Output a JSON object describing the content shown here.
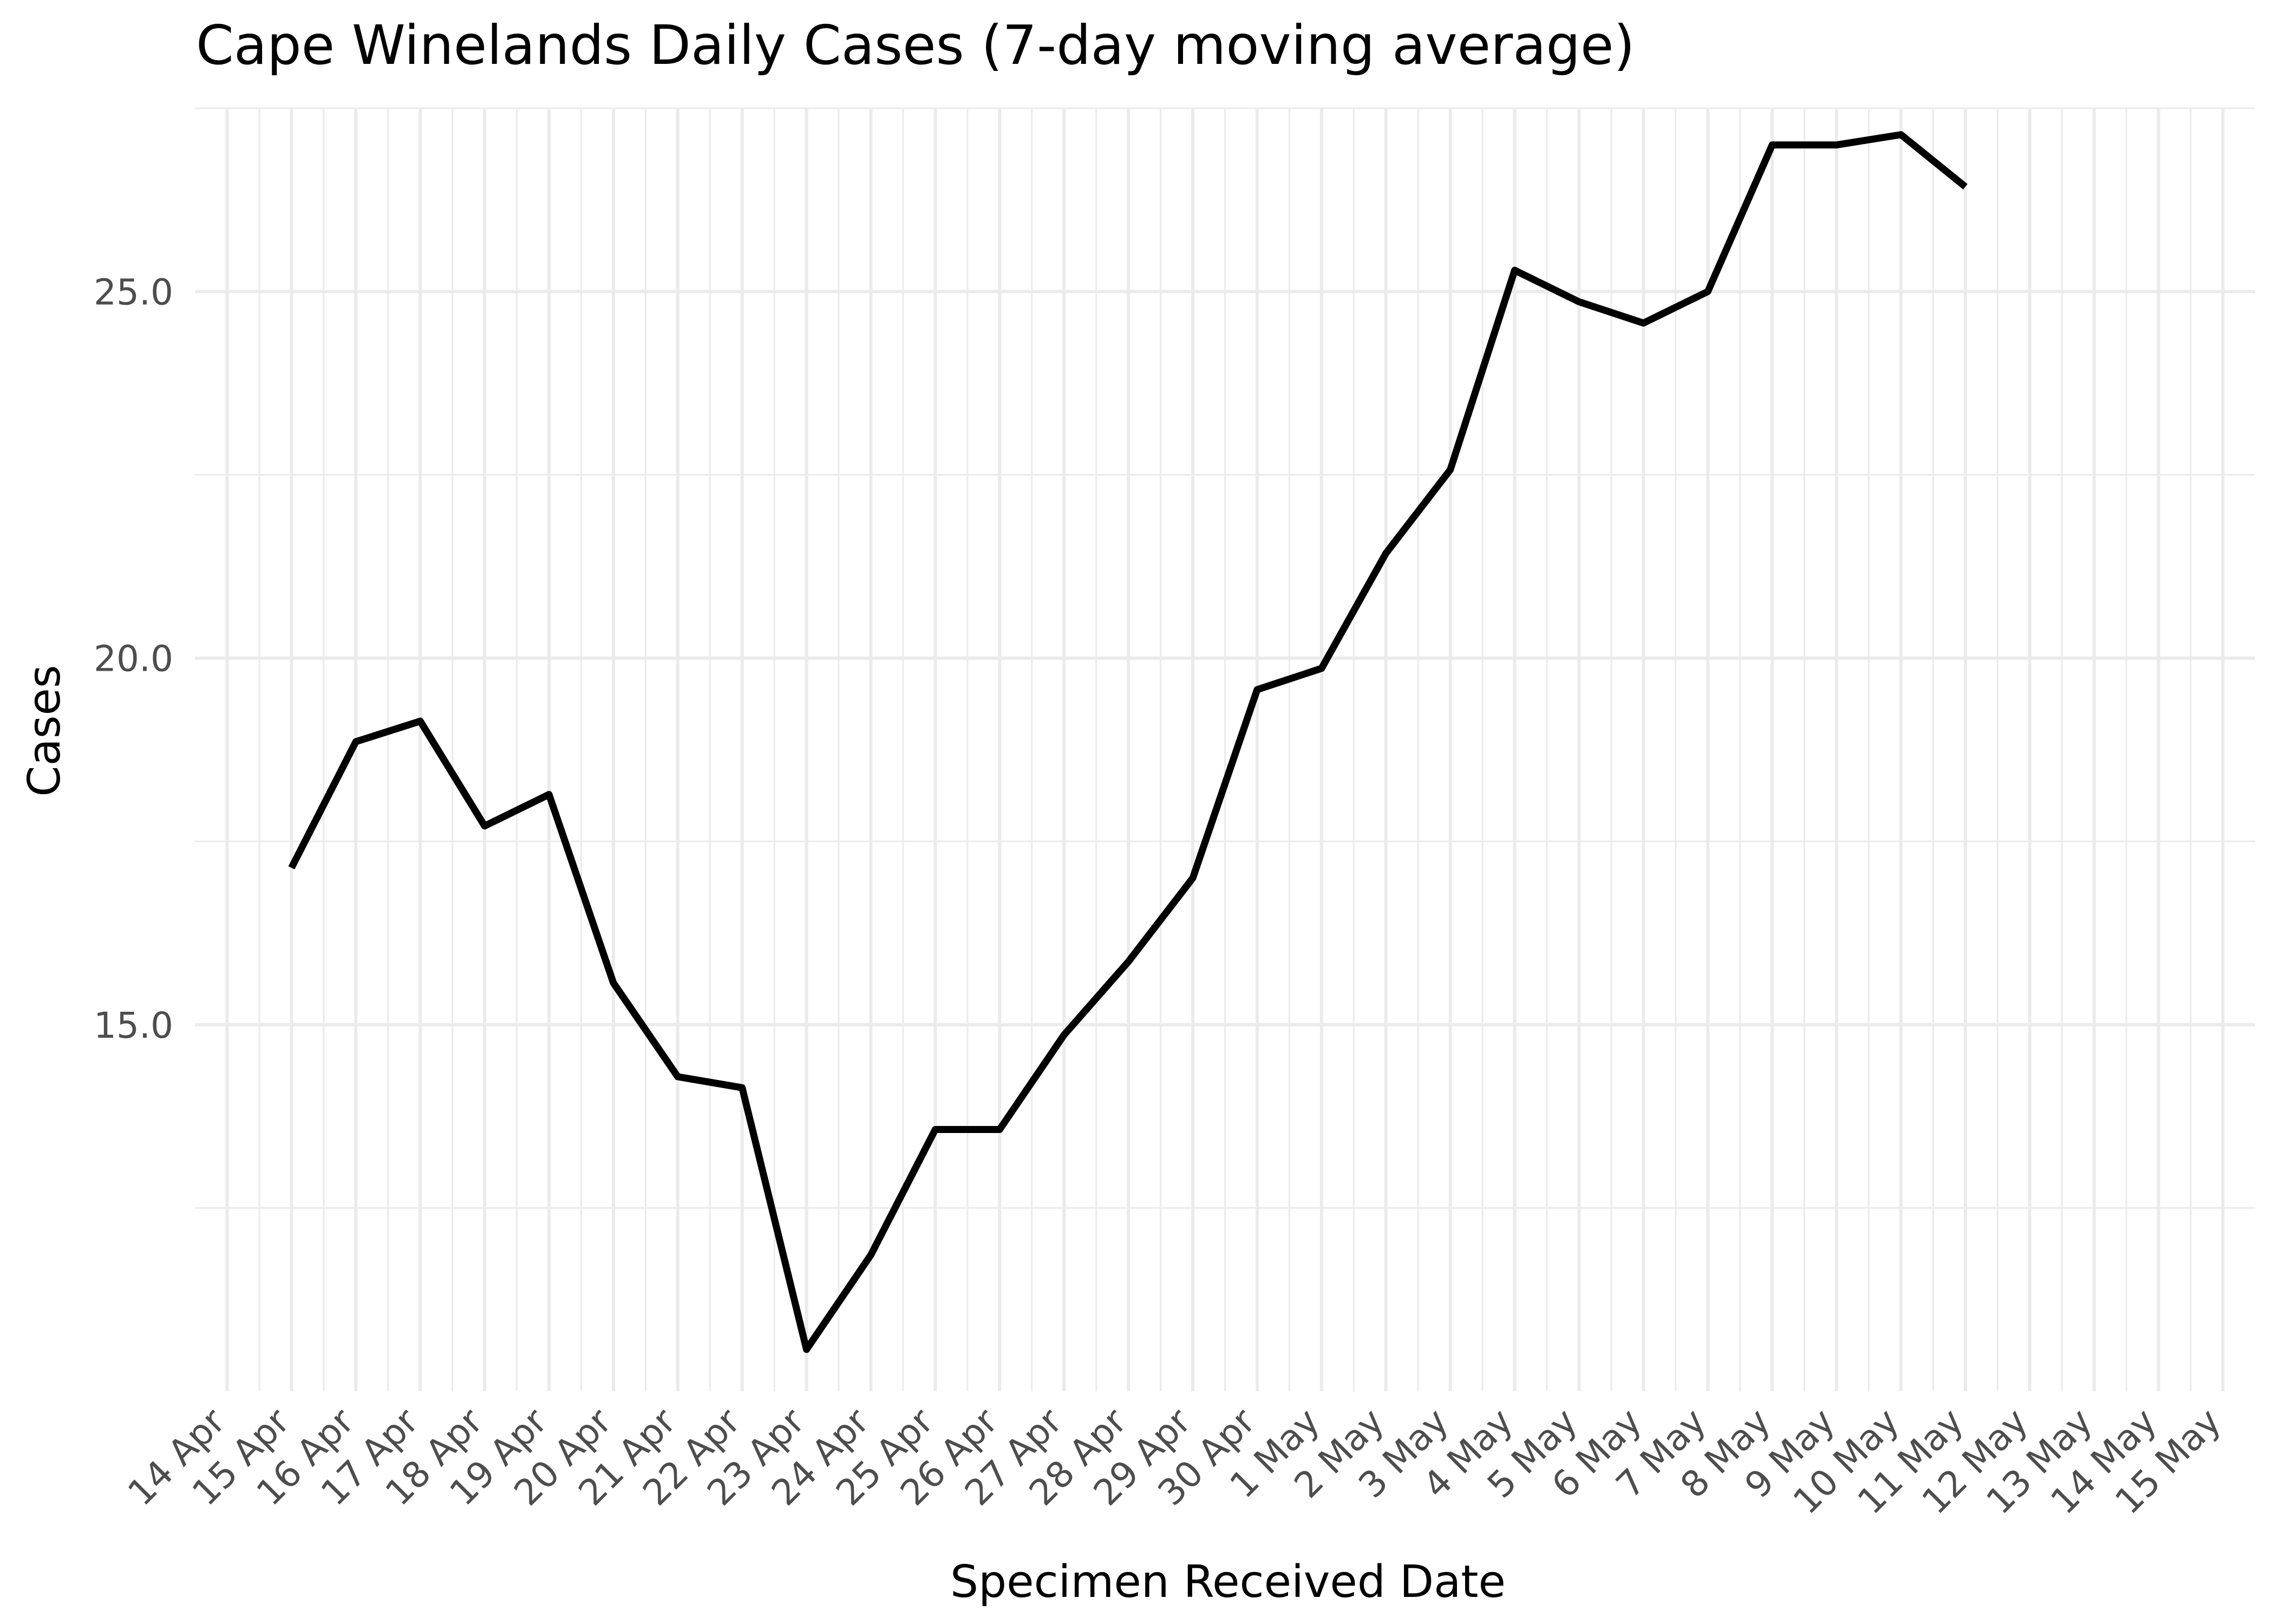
{
  "chart_data": {
    "type": "line",
    "title": "Cape Winelands Daily Cases (7-day moving average)",
    "xlabel": "Specimen Received Date",
    "ylabel": "Cases",
    "x_ticks": [
      "14 Apr",
      "15 Apr",
      "16 Apr",
      "17 Apr",
      "18 Apr",
      "19 Apr",
      "20 Apr",
      "21 Apr",
      "22 Apr",
      "23 Apr",
      "24 Apr",
      "25 Apr",
      "26 Apr",
      "27 Apr",
      "28 Apr",
      "29 Apr",
      "30 Apr",
      "1 May",
      "2 May",
      "3 May",
      "4 May",
      "5 May",
      "6 May",
      "7 May",
      "8 May",
      "9 May",
      "10 May",
      "11 May",
      "12 May",
      "13 May",
      "14 May",
      "15 May"
    ],
    "y_ticks": [
      15,
      20,
      25
    ],
    "y_tick_labels": [
      "15.0",
      "20.0",
      "25.0"
    ],
    "xlim": [
      -0.5,
      31.5
    ],
    "ylim": [
      10.0,
      27.5
    ],
    "grid": true,
    "series": [
      {
        "name": "Cases",
        "x": [
          "15 Apr",
          "16 Apr",
          "17 Apr",
          "18 Apr",
          "19 Apr",
          "20 Apr",
          "21 Apr",
          "22 Apr",
          "23 Apr",
          "24 Apr",
          "25 Apr",
          "26 Apr",
          "27 Apr",
          "28 Apr",
          "29 Apr",
          "30 Apr",
          "1 May",
          "2 May",
          "3 May",
          "4 May",
          "5 May",
          "6 May",
          "7 May",
          "8 May",
          "9 May",
          "10 May",
          "11 May"
        ],
        "values": [
          17.14,
          18.86,
          19.14,
          17.71,
          18.14,
          15.57,
          14.29,
          14.14,
          10.57,
          11.86,
          13.57,
          13.57,
          14.86,
          15.86,
          17.0,
          19.57,
          19.86,
          21.43,
          22.57,
          25.29,
          24.86,
          24.57,
          25.0,
          27.0,
          27.0,
          27.14,
          26.43
        ],
        "color": "#000000"
      }
    ]
  }
}
